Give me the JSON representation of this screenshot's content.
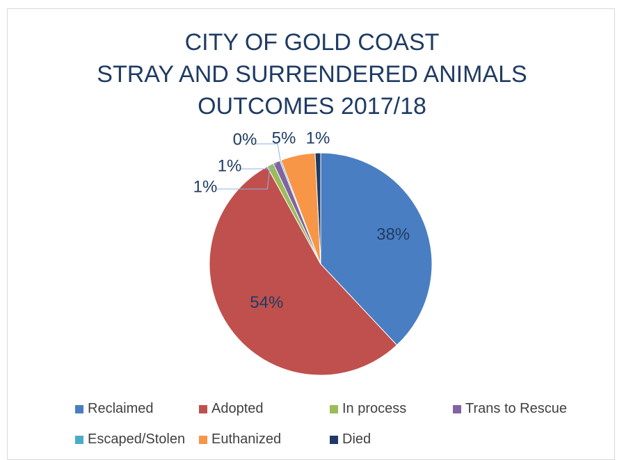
{
  "chart_data": {
    "type": "pie",
    "title_lines": [
      "CITY OF GOLD COAST",
      "STRAY AND SURRENDERED ANIMALS",
      "OUTCOMES 2017/18"
    ],
    "slices": [
      {
        "name": "Reclaimed",
        "value": 38,
        "label": "38%",
        "color": "#4a7ec2"
      },
      {
        "name": "Adopted",
        "value": 54,
        "label": "54%",
        "color": "#c0504d"
      },
      {
        "name": "In process",
        "value": 1,
        "label": "1%",
        "color": "#9bbb59"
      },
      {
        "name": "Trans to Rescue",
        "value": 1,
        "label": "1%",
        "color": "#8064a2"
      },
      {
        "name": "Escaped/Stolen",
        "value": 0.2,
        "label": "0%",
        "color": "#4bacc6"
      },
      {
        "name": "Euthanized",
        "value": 5,
        "label": "5%",
        "color": "#f79646"
      },
      {
        "name": "Died",
        "value": 0.8,
        "label": "1%",
        "color": "#1f3b63"
      }
    ],
    "legend_position": "bottom"
  }
}
